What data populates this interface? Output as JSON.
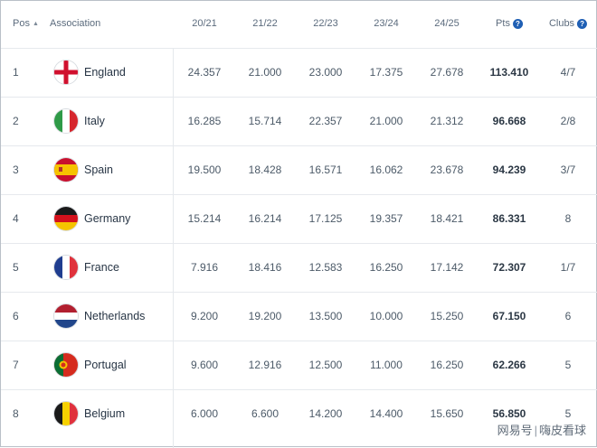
{
  "header": {
    "pos": "Pos",
    "association": "Association",
    "seasons": [
      "20/21",
      "21/22",
      "22/23",
      "23/24",
      "24/25"
    ],
    "pts": "Pts",
    "clubs": "Clubs"
  },
  "rows": [
    {
      "pos": "1",
      "name": "England",
      "flag": "england-flag-icon",
      "s": [
        "24.357",
        "21.000",
        "23.000",
        "17.375",
        "27.678"
      ],
      "pts": "113.410",
      "clubs": "4/7"
    },
    {
      "pos": "2",
      "name": "Italy",
      "flag": "italy-flag-icon",
      "s": [
        "16.285",
        "15.714",
        "22.357",
        "21.000",
        "21.312"
      ],
      "pts": "96.668",
      "clubs": "2/8"
    },
    {
      "pos": "3",
      "name": "Spain",
      "flag": "spain-flag-icon",
      "s": [
        "19.500",
        "18.428",
        "16.571",
        "16.062",
        "23.678"
      ],
      "pts": "94.239",
      "clubs": "3/7"
    },
    {
      "pos": "4",
      "name": "Germany",
      "flag": "germany-flag-icon",
      "s": [
        "15.214",
        "16.214",
        "17.125",
        "19.357",
        "18.421"
      ],
      "pts": "86.331",
      "clubs": "8"
    },
    {
      "pos": "5",
      "name": "France",
      "flag": "france-flag-icon",
      "s": [
        "7.916",
        "18.416",
        "12.583",
        "16.250",
        "17.142"
      ],
      "pts": "72.307",
      "clubs": "1/7"
    },
    {
      "pos": "6",
      "name": "Netherlands",
      "flag": "netherlands-flag-icon",
      "s": [
        "9.200",
        "19.200",
        "13.500",
        "10.000",
        "15.250"
      ],
      "pts": "67.150",
      "clubs": "6"
    },
    {
      "pos": "7",
      "name": "Portugal",
      "flag": "portugal-flag-icon",
      "s": [
        "9.600",
        "12.916",
        "12.500",
        "11.000",
        "16.250"
      ],
      "pts": "62.266",
      "clubs": "5"
    },
    {
      "pos": "8",
      "name": "Belgium",
      "flag": "belgium-flag-icon",
      "s": [
        "6.000",
        "6.600",
        "14.200",
        "14.400",
        "15.650"
      ],
      "pts": "56.850",
      "clubs": "5"
    }
  ],
  "watermark": {
    "left": "网易号",
    "right": "嗨皮看球"
  },
  "colors": {
    "accent": "#1f5fb4",
    "text": "#2b3a4a",
    "divider": "#e6e9ed"
  }
}
